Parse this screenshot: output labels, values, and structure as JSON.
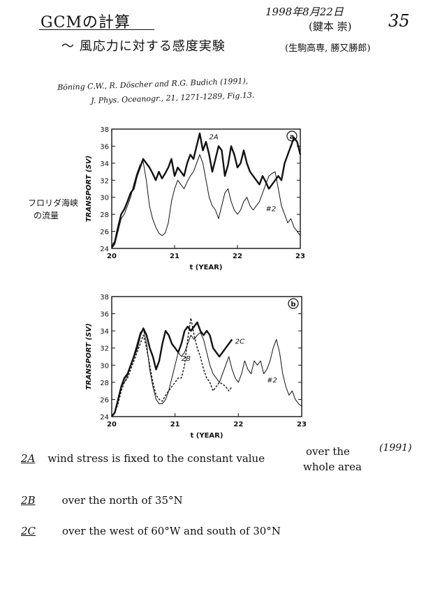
{
  "header": {
    "title": "GCMの計算",
    "subtitle": "～ 風応力に対する感度実験",
    "date": "1998年8月22日",
    "author": "(鍵本 崇)",
    "affiliation": "(生駒高専, 勝又勝郎)",
    "page_number": "35"
  },
  "citation": {
    "line1": "Böning C.W., R. Döscher and R.G. Budich (1991),",
    "line2": "J. Phys. Oceanogr., 21, 1271-1289, Fig.13."
  },
  "margin_note": {
    "line1": "フロリダ海峡",
    "line2": "の流量"
  },
  "chart_data": [
    {
      "type": "line",
      "panel_label": "a",
      "xlabel": "t (YEAR)",
      "ylabel": "TRANSPORT (SV)",
      "xlim": [
        20,
        23
      ],
      "ylim": [
        24,
        38
      ],
      "x_ticks": [
        20,
        21,
        22,
        23
      ],
      "y_ticks": [
        24,
        26,
        28,
        30,
        32,
        34,
        36,
        38
      ],
      "x_tick_labels": [
        "20",
        "21",
        "22",
        "23"
      ],
      "y_tick_labels": [
        "24",
        "26",
        "28",
        "30",
        "32",
        "34",
        "36",
        "38"
      ],
      "series": [
        {
          "name": "2A",
          "style": "thick",
          "x": [
            20.0,
            20.05,
            20.1,
            20.15,
            20.2,
            20.25,
            20.3,
            20.35,
            20.4,
            20.45,
            20.5,
            20.55,
            20.6,
            20.65,
            20.7,
            20.75,
            20.8,
            20.85,
            20.9,
            20.95,
            21.0,
            21.05,
            21.1,
            21.15,
            21.2,
            21.25,
            21.3,
            21.35,
            21.4,
            21.45,
            21.5,
            21.55,
            21.6,
            21.65,
            21.7,
            21.75,
            21.8,
            21.85,
            21.9,
            21.95,
            22.0,
            22.05,
            22.1,
            22.15,
            22.2,
            22.25,
            22.3,
            22.35,
            22.4,
            22.45,
            22.5,
            22.55,
            22.6,
            22.65,
            22.7,
            22.75,
            22.8,
            22.85,
            22.9,
            22.95,
            23.0
          ],
          "values": [
            24.2,
            24.8,
            26.5,
            28.0,
            28.6,
            29.5,
            30.5,
            31.0,
            32.5,
            33.5,
            34.5,
            34.0,
            33.5,
            32.8,
            32.0,
            33.0,
            32.2,
            32.8,
            33.5,
            34.5,
            32.5,
            33.5,
            33.0,
            32.5,
            34.0,
            35.0,
            34.5,
            36.0,
            37.5,
            35.5,
            36.5,
            35.0,
            33.0,
            34.5,
            36.0,
            35.5,
            32.5,
            33.8,
            36.0,
            35.0,
            33.5,
            34.0,
            35.5,
            34.0,
            33.0,
            32.5,
            32.0,
            31.5,
            32.5,
            31.8,
            31.0,
            31.5,
            32.0,
            32.5,
            32.0,
            34.0,
            35.0,
            36.0,
            37.0,
            36.5,
            35.0
          ]
        },
        {
          "name": "#2",
          "style": "thin",
          "x": [
            20.0,
            20.05,
            20.1,
            20.15,
            20.2,
            20.25,
            20.3,
            20.35,
            20.4,
            20.45,
            20.5,
            20.55,
            20.6,
            20.65,
            20.7,
            20.75,
            20.8,
            20.85,
            20.9,
            20.95,
            21.0,
            21.05,
            21.1,
            21.15,
            21.2,
            21.25,
            21.3,
            21.35,
            21.4,
            21.45,
            21.5,
            21.55,
            21.6,
            21.65,
            21.7,
            21.75,
            21.8,
            21.85,
            21.9,
            21.95,
            22.0,
            22.05,
            22.1,
            22.15,
            22.2,
            22.25,
            22.3,
            22.35,
            22.4,
            22.45,
            22.5,
            22.55,
            22.6,
            22.65,
            22.7,
            22.75,
            22.8,
            22.85,
            22.9,
            22.95,
            23.0
          ],
          "values": [
            24.0,
            24.5,
            26.0,
            27.5,
            28.0,
            29.0,
            30.0,
            31.5,
            32.8,
            33.8,
            34.2,
            32.0,
            29.0,
            27.5,
            26.5,
            25.8,
            25.5,
            25.8,
            27.0,
            29.5,
            31.0,
            32.0,
            31.5,
            31.0,
            31.8,
            32.5,
            33.0,
            34.0,
            35.0,
            34.0,
            32.0,
            30.0,
            29.0,
            28.5,
            27.5,
            29.0,
            30.5,
            31.0,
            29.5,
            28.5,
            28.0,
            28.5,
            29.5,
            30.0,
            29.0,
            28.5,
            29.0,
            29.5,
            30.5,
            31.5,
            32.5,
            32.8,
            33.0,
            31.0,
            29.0,
            28.0,
            27.0,
            27.5,
            26.5,
            26.0,
            25.5
          ]
        }
      ],
      "annotations": [
        "2A",
        "#2"
      ]
    },
    {
      "type": "line",
      "panel_label": "b",
      "xlabel": "t (YEAR)",
      "ylabel": "TRANSPORT (SV)",
      "xlim": [
        20,
        23
      ],
      "ylim": [
        24,
        38
      ],
      "x_ticks": [
        20,
        21,
        22,
        23
      ],
      "y_ticks": [
        24,
        26,
        28,
        30,
        32,
        34,
        36,
        38
      ],
      "x_tick_labels": [
        "20",
        "21",
        "22",
        "23"
      ],
      "y_tick_labels": [
        "24",
        "26",
        "28",
        "30",
        "32",
        "34",
        "36",
        "38"
      ],
      "series": [
        {
          "name": "2C",
          "style": "thick",
          "x": [
            20.0,
            20.05,
            20.1,
            20.15,
            20.2,
            20.25,
            20.3,
            20.35,
            20.4,
            20.45,
            20.5,
            20.55,
            20.6,
            20.65,
            20.7,
            20.75,
            20.8,
            20.85,
            20.9,
            20.95,
            21.0,
            21.05,
            21.1,
            21.15,
            21.2,
            21.25,
            21.3,
            21.35,
            21.4,
            21.45,
            21.5,
            21.55,
            21.6,
            21.65,
            21.7,
            21.75,
            21.8,
            21.85,
            21.9
          ],
          "values": [
            24.0,
            24.5,
            26.0,
            27.5,
            28.5,
            29.0,
            30.0,
            31.0,
            32.0,
            33.5,
            34.3,
            33.5,
            32.0,
            31.0,
            29.5,
            30.5,
            32.5,
            34.0,
            33.5,
            32.5,
            32.0,
            31.5,
            32.5,
            34.0,
            34.5,
            34.0,
            34.5,
            35.0,
            34.0,
            33.5,
            34.0,
            33.5,
            32.0,
            31.5,
            31.0,
            31.5,
            32.0,
            32.5,
            33.0
          ]
        },
        {
          "name": "2B",
          "style": "dashed",
          "x": [
            20.0,
            20.05,
            20.1,
            20.15,
            20.2,
            20.25,
            20.3,
            20.35,
            20.4,
            20.45,
            20.5,
            20.55,
            20.6,
            20.65,
            20.7,
            20.75,
            20.8,
            20.85,
            20.9,
            20.95,
            21.0,
            21.05,
            21.1,
            21.15,
            21.2,
            21.25,
            21.3,
            21.35,
            21.4,
            21.45,
            21.5,
            21.55,
            21.6,
            21.65,
            21.7,
            21.75,
            21.8,
            21.85,
            21.9
          ],
          "values": [
            24.0,
            24.5,
            25.5,
            27.0,
            28.0,
            28.5,
            29.5,
            30.5,
            31.5,
            32.5,
            33.5,
            32.0,
            30.0,
            28.0,
            26.5,
            26.0,
            25.8,
            26.5,
            27.0,
            27.5,
            28.0,
            28.5,
            28.5,
            30.0,
            33.0,
            35.5,
            33.5,
            32.0,
            31.0,
            29.5,
            28.5,
            28.0,
            27.0,
            27.5,
            28.0,
            27.8,
            27.5,
            27.0,
            27.5
          ]
        },
        {
          "name": "#2",
          "style": "thin",
          "x": [
            20.0,
            20.05,
            20.1,
            20.15,
            20.2,
            20.25,
            20.3,
            20.35,
            20.4,
            20.45,
            20.5,
            20.55,
            20.6,
            20.65,
            20.7,
            20.75,
            20.8,
            20.85,
            20.9,
            20.95,
            21.0,
            21.05,
            21.1,
            21.15,
            21.2,
            21.25,
            21.3,
            21.35,
            21.4,
            21.45,
            21.5,
            21.55,
            21.6,
            21.65,
            21.7,
            21.75,
            21.8,
            21.85,
            21.9,
            21.95,
            22.0,
            22.05,
            22.1,
            22.15,
            22.2,
            22.25,
            22.3,
            22.35,
            22.4,
            22.45,
            22.5,
            22.55,
            22.6,
            22.65,
            22.7,
            22.75,
            22.8,
            22.85,
            22.9,
            22.95,
            23.0
          ],
          "values": [
            24.0,
            24.6,
            26.0,
            27.5,
            28.0,
            28.8,
            30.0,
            31.2,
            32.5,
            33.8,
            34.2,
            32.5,
            29.5,
            27.5,
            26.0,
            25.5,
            25.5,
            26.0,
            27.0,
            28.5,
            30.0,
            31.5,
            31.0,
            31.5,
            32.5,
            33.5,
            33.0,
            33.5,
            33.8,
            33.0,
            31.5,
            30.0,
            29.0,
            28.5,
            28.0,
            29.0,
            30.0,
            31.0,
            29.5,
            28.5,
            28.0,
            29.0,
            30.5,
            29.5,
            29.0,
            30.5,
            30.0,
            30.5,
            29.0,
            29.5,
            30.5,
            32.0,
            33.0,
            31.5,
            29.0,
            27.5,
            26.5,
            27.0,
            26.0,
            25.5,
            25.2
          ]
        }
      ],
      "annotations": [
        "2C",
        "2B",
        "#2"
      ]
    }
  ],
  "notes": [
    {
      "id": "2A",
      "text": "wind stress is fixed to the constant value",
      "extra": "over the",
      "extra2": "whole area",
      "year": "(1991)"
    },
    {
      "id": "2B",
      "text": "over the north of 35°N"
    },
    {
      "id": "2C",
      "text": "over the west of 60°W and south of 30°N"
    }
  ]
}
